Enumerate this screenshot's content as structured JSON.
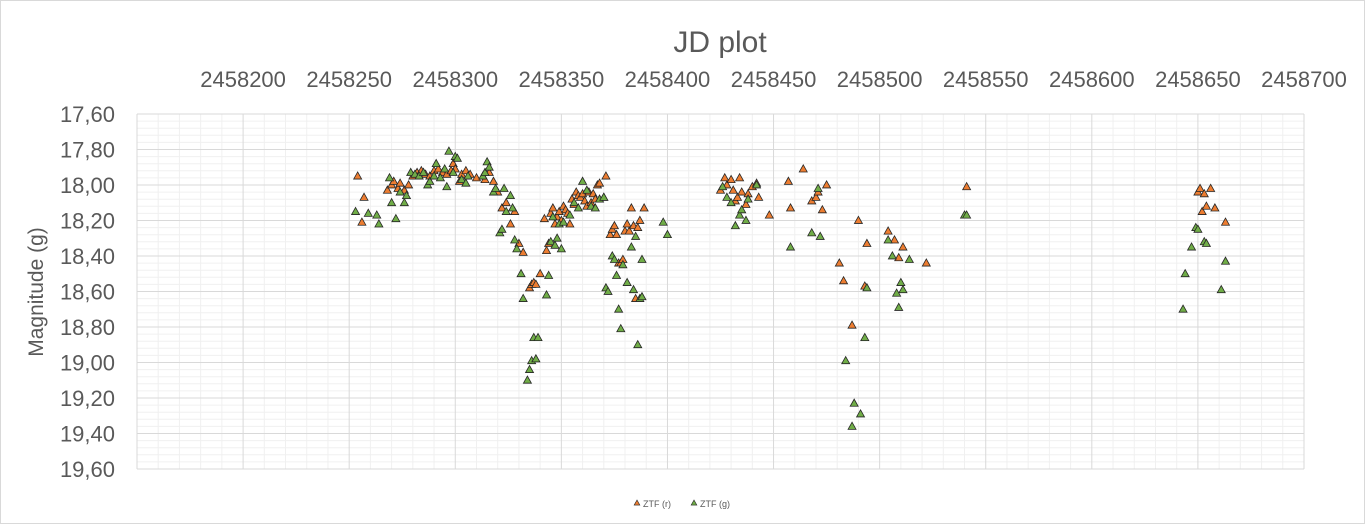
{
  "chart_data": {
    "type": "scatter",
    "title": "JD plot",
    "xlabel": "",
    "ylabel": "Magnitude (g)",
    "xlim": [
      2458150,
      2458700
    ],
    "ylim": [
      17.6,
      19.6
    ],
    "y_reversed": true,
    "x_axis_position": "top",
    "x_ticks": [
      2458200,
      2458250,
      2458300,
      2458350,
      2458400,
      2458450,
      2458500,
      2458550,
      2458600,
      2458650,
      2458700
    ],
    "x_tick_labels": [
      "2458200",
      "2458250",
      "2458300",
      "2458350",
      "2458400",
      "2458450",
      "2458500",
      "2458550",
      "2458600",
      "2458650",
      "2458700"
    ],
    "y_ticks": [
      17.6,
      17.8,
      18.0,
      18.2,
      18.4,
      18.6,
      18.8,
      19.0,
      19.2,
      19.4,
      19.6
    ],
    "y_tick_labels": [
      "17,60",
      "17,80",
      "18,00",
      "18,20",
      "18,40",
      "18,60",
      "18,80",
      "19,00",
      "19,20",
      "19,40",
      "19,60"
    ],
    "grid": true,
    "legend": "bottom",
    "series": [
      {
        "name": "ZTF (r)",
        "color": "#ed7d31",
        "marker": "triangle",
        "points": [
          [
            2458254,
            17.95
          ],
          [
            2458256,
            18.21
          ],
          [
            2458257,
            18.07
          ],
          [
            2458268,
            18.03
          ],
          [
            2458270,
            18.0
          ],
          [
            2458271,
            17.98
          ],
          [
            2458273,
            18.02
          ],
          [
            2458274,
            17.99
          ],
          [
            2458276,
            18.03
          ],
          [
            2458278,
            18.0
          ],
          [
            2458280,
            17.95
          ],
          [
            2458282,
            17.93
          ],
          [
            2458284,
            17.92
          ],
          [
            2458286,
            17.94
          ],
          [
            2458288,
            17.95
          ],
          [
            2458290,
            17.92
          ],
          [
            2458292,
            17.91
          ],
          [
            2458294,
            17.93
          ],
          [
            2458296,
            17.94
          ],
          [
            2458298,
            17.92
          ],
          [
            2458299,
            17.88
          ],
          [
            2458300,
            17.91
          ],
          [
            2458302,
            17.98
          ],
          [
            2458303,
            17.94
          ],
          [
            2458305,
            17.92
          ],
          [
            2458307,
            17.94
          ],
          [
            2458310,
            17.96
          ],
          [
            2458314,
            17.97
          ],
          [
            2458316,
            17.93
          ],
          [
            2458318,
            17.98
          ],
          [
            2458320,
            18.04
          ],
          [
            2458322,
            18.13
          ],
          [
            2458324,
            18.1
          ],
          [
            2458326,
            18.22
          ],
          [
            2458328,
            18.15
          ],
          [
            2458330,
            18.33
          ],
          [
            2458332,
            18.38
          ],
          [
            2458335,
            18.58
          ],
          [
            2458336,
            18.56
          ],
          [
            2458337,
            18.55
          ],
          [
            2458338,
            18.56
          ],
          [
            2458340,
            18.5
          ],
          [
            2458342,
            18.19
          ],
          [
            2458343,
            18.37
          ],
          [
            2458344,
            18.33
          ],
          [
            2458345,
            18.16
          ],
          [
            2458346,
            18.13
          ],
          [
            2458347,
            18.22
          ],
          [
            2458348,
            18.18
          ],
          [
            2458349,
            18.15
          ],
          [
            2458350,
            18.2
          ],
          [
            2458351,
            18.12
          ],
          [
            2458352,
            18.14
          ],
          [
            2458353,
            18.16
          ],
          [
            2458354,
            18.22
          ],
          [
            2458355,
            18.08
          ],
          [
            2458356,
            18.11
          ],
          [
            2458357,
            18.04
          ],
          [
            2458358,
            18.06
          ],
          [
            2458359,
            18.07
          ],
          [
            2458360,
            18.05
          ],
          [
            2458361,
            18.09
          ],
          [
            2458362,
            18.12
          ],
          [
            2458363,
            18.04
          ],
          [
            2458364,
            18.1
          ],
          [
            2458365,
            18.05
          ],
          [
            2458366,
            18.08
          ],
          [
            2458367,
            18.0
          ],
          [
            2458368,
            17.99
          ],
          [
            2458370,
            18.07
          ],
          [
            2458371,
            17.95
          ],
          [
            2458373,
            18.28
          ],
          [
            2458374,
            18.25
          ],
          [
            2458375,
            18.23
          ],
          [
            2458376,
            18.28
          ],
          [
            2458377,
            18.44
          ],
          [
            2458378,
            18.44
          ],
          [
            2458379,
            18.42
          ],
          [
            2458380,
            18.26
          ],
          [
            2458381,
            18.22
          ],
          [
            2458382,
            18.26
          ],
          [
            2458383,
            18.13
          ],
          [
            2458384,
            18.23
          ],
          [
            2458385,
            18.64
          ],
          [
            2458386,
            18.24
          ],
          [
            2458387,
            18.2
          ],
          [
            2458389,
            18.13
          ],
          [
            2458425,
            18.03
          ],
          [
            2458427,
            17.96
          ],
          [
            2458428,
            18.0
          ],
          [
            2458430,
            17.97
          ],
          [
            2458431,
            18.03
          ],
          [
            2458432,
            18.09
          ],
          [
            2458433,
            18.07
          ],
          [
            2458434,
            17.96
          ],
          [
            2458435,
            18.04
          ],
          [
            2458437,
            18.11
          ],
          [
            2458438,
            18.05
          ],
          [
            2458440,
            18.01
          ],
          [
            2458442,
            17.99
          ],
          [
            2458443,
            18.07
          ],
          [
            2458448,
            18.17
          ],
          [
            2458457,
            17.98
          ],
          [
            2458458,
            18.13
          ],
          [
            2458464,
            17.91
          ],
          [
            2458468,
            18.09
          ],
          [
            2458470,
            18.07
          ],
          [
            2458471,
            18.04
          ],
          [
            2458473,
            18.14
          ],
          [
            2458475,
            18.0
          ],
          [
            2458481,
            18.44
          ],
          [
            2458483,
            18.54
          ],
          [
            2458487,
            18.79
          ],
          [
            2458490,
            18.2
          ],
          [
            2458493,
            18.57
          ],
          [
            2458494,
            18.33
          ],
          [
            2458504,
            18.26
          ],
          [
            2458507,
            18.31
          ],
          [
            2458509,
            18.41
          ],
          [
            2458511,
            18.35
          ],
          [
            2458522,
            18.44
          ],
          [
            2458541,
            18.01
          ],
          [
            2458650,
            18.04
          ],
          [
            2458651,
            18.02
          ],
          [
            2458652,
            18.15
          ],
          [
            2458653,
            18.05
          ],
          [
            2458654,
            18.12
          ],
          [
            2458656,
            18.02
          ],
          [
            2458658,
            18.13
          ],
          [
            2458663,
            18.21
          ]
        ]
      },
      {
        "name": "ZTF (g)",
        "color": "#70ad47",
        "marker": "triangle",
        "points": [
          [
            2458253,
            18.15
          ],
          [
            2458259,
            18.16
          ],
          [
            2458263,
            18.17
          ],
          [
            2458264,
            18.22
          ],
          [
            2458269,
            17.96
          ],
          [
            2458270,
            18.1
          ],
          [
            2458272,
            18.19
          ],
          [
            2458274,
            18.04
          ],
          [
            2458276,
            18.1
          ],
          [
            2458277,
            18.06
          ],
          [
            2458279,
            17.93
          ],
          [
            2458281,
            17.94
          ],
          [
            2458283,
            17.95
          ],
          [
            2458285,
            17.93
          ],
          [
            2458287,
            18.0
          ],
          [
            2458288,
            17.98
          ],
          [
            2458290,
            17.95
          ],
          [
            2458291,
            17.88
          ],
          [
            2458293,
            17.96
          ],
          [
            2458295,
            17.91
          ],
          [
            2458296,
            18.01
          ],
          [
            2458297,
            17.81
          ],
          [
            2458299,
            17.93
          ],
          [
            2458300,
            17.84
          ],
          [
            2458301,
            17.85
          ],
          [
            2458303,
            17.97
          ],
          [
            2458305,
            17.99
          ],
          [
            2458306,
            17.95
          ],
          [
            2458313,
            17.95
          ],
          [
            2458314,
            17.93
          ],
          [
            2458315,
            17.87
          ],
          [
            2458316,
            17.9
          ],
          [
            2458318,
            18.04
          ],
          [
            2458319,
            18.02
          ],
          [
            2458321,
            18.27
          ],
          [
            2458322,
            18.25
          ],
          [
            2458323,
            18.02
          ],
          [
            2458324,
            18.15
          ],
          [
            2458326,
            18.06
          ],
          [
            2458327,
            18.13
          ],
          [
            2458328,
            18.31
          ],
          [
            2458329,
            18.36
          ],
          [
            2458331,
            18.5
          ],
          [
            2458332,
            18.64
          ],
          [
            2458334,
            19.1
          ],
          [
            2458335,
            19.04
          ],
          [
            2458336,
            18.99
          ],
          [
            2458337,
            18.86
          ],
          [
            2458338,
            18.98
          ],
          [
            2458339,
            18.86
          ],
          [
            2458343,
            18.62
          ],
          [
            2458344,
            18.51
          ],
          [
            2458345,
            18.32
          ],
          [
            2458346,
            18.18
          ],
          [
            2458347,
            18.34
          ],
          [
            2458348,
            18.3
          ],
          [
            2458349,
            18.22
          ],
          [
            2458350,
            18.36
          ],
          [
            2458351,
            18.21
          ],
          [
            2458354,
            18.17
          ],
          [
            2458356,
            18.1
          ],
          [
            2458358,
            18.13
          ],
          [
            2458360,
            17.98
          ],
          [
            2458362,
            18.03
          ],
          [
            2458364,
            18.12
          ],
          [
            2458366,
            18.13
          ],
          [
            2458368,
            18.08
          ],
          [
            2458370,
            18.07
          ],
          [
            2458371,
            18.58
          ],
          [
            2458372,
            18.6
          ],
          [
            2458374,
            18.4
          ],
          [
            2458375,
            18.42
          ],
          [
            2458376,
            18.51
          ],
          [
            2458377,
            18.7
          ],
          [
            2458378,
            18.81
          ],
          [
            2458379,
            18.45
          ],
          [
            2458381,
            18.55
          ],
          [
            2458383,
            18.35
          ],
          [
            2458384,
            18.59
          ],
          [
            2458385,
            18.29
          ],
          [
            2458386,
            18.9
          ],
          [
            2458387,
            18.64
          ],
          [
            2458388,
            18.42
          ],
          [
            2458388,
            18.63
          ],
          [
            2458398,
            18.21
          ],
          [
            2458400,
            18.28
          ],
          [
            2458426,
            18.01
          ],
          [
            2458428,
            18.07
          ],
          [
            2458430,
            18.1
          ],
          [
            2458432,
            18.23
          ],
          [
            2458434,
            18.17
          ],
          [
            2458435,
            18.14
          ],
          [
            2458437,
            18.2
          ],
          [
            2458438,
            18.08
          ],
          [
            2458442,
            18.0
          ],
          [
            2458458,
            18.35
          ],
          [
            2458468,
            18.27
          ],
          [
            2458471,
            18.02
          ],
          [
            2458472,
            18.29
          ],
          [
            2458484,
            18.99
          ],
          [
            2458488,
            19.23
          ],
          [
            2458487,
            19.36
          ],
          [
            2458491,
            19.29
          ],
          [
            2458493,
            18.86
          ],
          [
            2458494,
            18.58
          ],
          [
            2458504,
            18.31
          ],
          [
            2458506,
            18.4
          ],
          [
            2458508,
            18.61
          ],
          [
            2458509,
            18.69
          ],
          [
            2458510,
            18.55
          ],
          [
            2458511,
            18.59
          ],
          [
            2458514,
            18.42
          ],
          [
            2458540,
            18.17
          ],
          [
            2458541,
            18.17
          ],
          [
            2458643,
            18.7
          ],
          [
            2458644,
            18.5
          ],
          [
            2458647,
            18.35
          ],
          [
            2458649,
            18.24
          ],
          [
            2458650,
            18.25
          ],
          [
            2458653,
            18.32
          ],
          [
            2458654,
            18.33
          ],
          [
            2458661,
            18.59
          ],
          [
            2458663,
            18.43
          ]
        ]
      }
    ]
  }
}
